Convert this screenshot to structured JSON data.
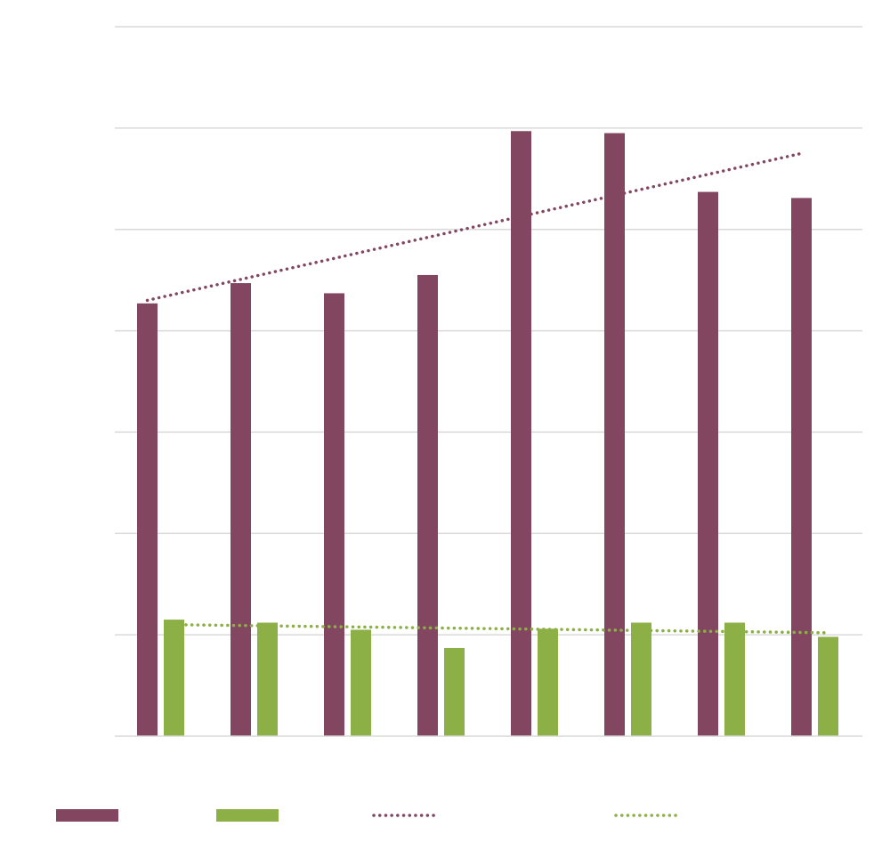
{
  "chart_data": {
    "type": "bar",
    "title": "",
    "xlabel": "",
    "ylabel": "",
    "categories": [
      "",
      "",
      "",
      "",
      "",
      "",
      "",
      ""
    ],
    "ylim": [
      0,
      7
    ],
    "grid": true,
    "legend_position": "bottom",
    "series": [
      {
        "name": "",
        "color": "#824661",
        "values": [
          4.27,
          4.47,
          4.37,
          4.55,
          5.97,
          5.95,
          5.37,
          5.31
        ]
      },
      {
        "name": "",
        "color": "#8cb046",
        "values": [
          1.15,
          1.12,
          1.05,
          0.87,
          1.06,
          1.12,
          1.12,
          0.98
        ]
      }
    ],
    "trendlines": [
      {
        "name": "",
        "series_index": 0,
        "style": "dotted",
        "color": "#824661",
        "start": 4.3,
        "end": 5.75
      },
      {
        "name": "",
        "series_index": 1,
        "style": "dotted",
        "color": "#8cb046",
        "start": 1.1,
        "end": 1.02
      }
    ],
    "colors": {
      "grid": "#d9d9d9",
      "axis": "#d9d9d9"
    }
  }
}
